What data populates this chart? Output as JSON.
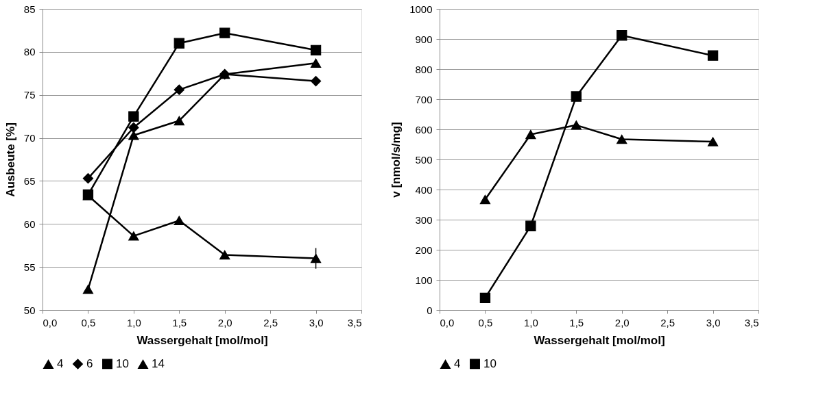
{
  "chart_data": [
    {
      "type": "line",
      "xlabel": "Wassergehalt  [mol/mol]",
      "ylabel": "Ausbeute [%]",
      "xlim": [
        0,
        3.5
      ],
      "ylim": [
        50,
        85
      ],
      "xticks": [
        {
          "value": 0,
          "label": "0,0"
        },
        {
          "value": 0.5,
          "label": "0,5"
        },
        {
          "value": 1,
          "label": "1,0"
        },
        {
          "value": 1.5,
          "label": "1,5"
        },
        {
          "value": 2,
          "label": "2,0"
        },
        {
          "value": 2.5,
          "label": "2,5"
        },
        {
          "value": 3,
          "label": "3,0"
        },
        {
          "value": 3.5,
          "label": "3,5"
        }
      ],
      "yticks": [
        50,
        55,
        60,
        65,
        70,
        75,
        80,
        85
      ],
      "grid": "y",
      "legend": "bottom",
      "x": [
        0.5,
        1,
        1.5,
        2,
        3
      ],
      "series": [
        {
          "name": "4",
          "color": "#000000",
          "marker": "triangle",
          "values": [
            63.3,
            58.6,
            60.4,
            56.4,
            56.0
          ],
          "errors": [
            null,
            null,
            null,
            null,
            1.2
          ]
        },
        {
          "name": "6",
          "color": "#000000",
          "marker": "diamond",
          "values": [
            65.3,
            71.2,
            75.6,
            77.4,
            76.6
          ]
        },
        {
          "name": "10",
          "color": "#000000",
          "marker": "square",
          "values": [
            63.4,
            72.5,
            81.0,
            82.2,
            80.2
          ]
        },
        {
          "name": "14",
          "color": "#000000",
          "marker": "triangle",
          "values": [
            52.4,
            70.3,
            72.0,
            77.4,
            78.7
          ]
        }
      ]
    },
    {
      "type": "line",
      "xlabel": "Wassergehalt  [mol/mol]",
      "ylabel": "v [nmol/s/mg]",
      "xlim": [
        0,
        3.5
      ],
      "ylim": [
        0,
        1000
      ],
      "xticks": [
        {
          "value": 0,
          "label": "0,0"
        },
        {
          "value": 0.5,
          "label": "0,5"
        },
        {
          "value": 1,
          "label": "1,0"
        },
        {
          "value": 1.5,
          "label": "1,5"
        },
        {
          "value": 2,
          "label": "2,0"
        },
        {
          "value": 2.5,
          "label": "2,5"
        },
        {
          "value": 3,
          "label": "3,0"
        },
        {
          "value": 3.5,
          "label": "3,5"
        }
      ],
      "yticks": [
        0,
        100,
        200,
        300,
        400,
        500,
        600,
        700,
        800,
        900,
        1000
      ],
      "grid": "y",
      "legend": "bottom",
      "x": [
        0.5,
        1,
        1.5,
        2,
        3
      ],
      "series": [
        {
          "name": "4",
          "color": "#000000",
          "marker": "triangle",
          "values": [
            367,
            583,
            614,
            567,
            559
          ]
        },
        {
          "name": "10",
          "color": "#000000",
          "marker": "square",
          "values": [
            40,
            279,
            709,
            912,
            845
          ]
        }
      ]
    }
  ]
}
